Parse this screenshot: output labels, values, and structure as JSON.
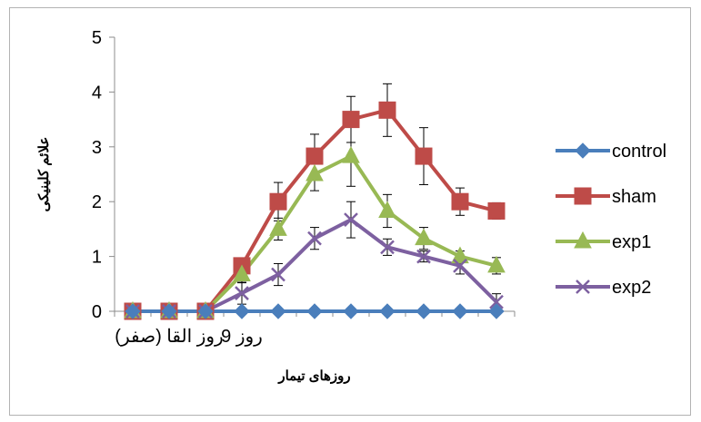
{
  "chart_data": {
    "type": "line",
    "title": "",
    "xlabel": "روزهای تیمار",
    "ylabel": "علائم کلینیکی",
    "ylim": [
      0,
      5
    ],
    "yticks": [
      0,
      1,
      2,
      3,
      4,
      5
    ],
    "x": [
      1,
      2,
      3,
      4,
      5,
      6,
      7,
      8,
      9,
      10,
      11
    ],
    "x_tick_labels": [
      {
        "x": 2,
        "text": "روز القا (صفر)"
      },
      {
        "x": 4,
        "text": "روز 9"
      }
    ],
    "legend_position": "right",
    "series": [
      {
        "name": "control",
        "color": "#4a7ebb",
        "marker": "diamond",
        "values": [
          0,
          0,
          0,
          0,
          0,
          0,
          0,
          0,
          0,
          0,
          0
        ],
        "errors": [
          0,
          0,
          0,
          0,
          0,
          0,
          0,
          0,
          0,
          0,
          0
        ]
      },
      {
        "name": "sham",
        "color": "#be4b48",
        "marker": "square",
        "values": [
          0,
          0,
          0,
          0.83,
          2.0,
          2.83,
          3.5,
          3.67,
          2.83,
          2.0,
          1.83
        ],
        "errors": [
          0,
          0,
          0,
          0.1,
          0.35,
          0.4,
          0.42,
          0.48,
          0.52,
          0.25,
          0.15
        ]
      },
      {
        "name": "exp1",
        "color": "#98b954",
        "marker": "triangle",
        "values": [
          0,
          0,
          0,
          0.67,
          1.5,
          2.5,
          2.83,
          1.83,
          1.33,
          1.0,
          0.83
        ],
        "errors": [
          0,
          0,
          0,
          0.15,
          0.2,
          0.3,
          0.55,
          0.3,
          0.2,
          0.1,
          0.15
        ]
      },
      {
        "name": "exp2",
        "color": "#7d60a0",
        "marker": "x",
        "values": [
          0,
          0,
          0,
          0.33,
          0.67,
          1.33,
          1.67,
          1.17,
          1.0,
          0.83,
          0.17
        ],
        "errors": [
          0,
          0,
          0,
          0.2,
          0.2,
          0.2,
          0.33,
          0.15,
          0.1,
          0.15,
          0.15
        ]
      }
    ]
  }
}
